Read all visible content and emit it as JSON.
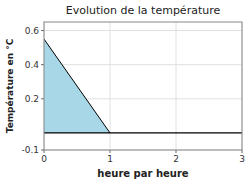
{
  "chart_data": {
    "type": "area",
    "title": "Evolution de la température",
    "x_label": "heure par heure",
    "y_label": "Température en °C",
    "x": [
      0,
      1
    ],
    "values": [
      0.55,
      0.0
    ],
    "baseline": 0.0,
    "color": "#a8d8e8",
    "xlim": [
      0,
      3
    ],
    "ylim": [
      -0.1,
      0.65
    ],
    "xticks": [
      0,
      1,
      2,
      3
    ],
    "yticks": [
      -0.1,
      0.2,
      0.4,
      0.6
    ],
    "grid": true
  }
}
